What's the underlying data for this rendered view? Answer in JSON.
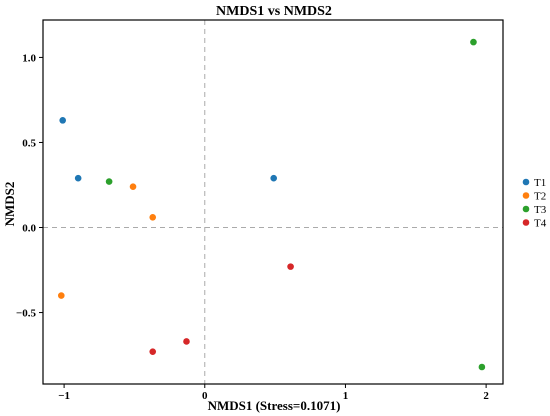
{
  "chart_data": {
    "type": "scatter",
    "title": "NMDS1 vs NMDS2",
    "xlabel": "NMDS1 (Stress=0.1071)",
    "ylabel": "NMDS2",
    "xlim": [
      -1.15,
      2.12
    ],
    "ylim": [
      -0.92,
      1.22
    ],
    "x_ticks": [
      -1,
      0,
      1,
      2
    ],
    "x_tick_labels": [
      "−1",
      "0",
      "1",
      "2"
    ],
    "y_ticks": [
      -0.5,
      0,
      0.5,
      1.0
    ],
    "y_tick_labels": [
      "−0.5",
      "0.0",
      "0.5",
      "1.0"
    ],
    "reference_lines": {
      "x": 0,
      "y": 0,
      "style": "dashed"
    },
    "grid": false,
    "legend_position": "right",
    "series": [
      {
        "name": "T1",
        "color": "#1f77b4",
        "points": [
          [
            -1.01,
            0.63
          ],
          [
            -0.9,
            0.29
          ],
          [
            0.49,
            0.29
          ]
        ]
      },
      {
        "name": "T2",
        "color": "#ff7f0e",
        "points": [
          [
            -0.51,
            0.24
          ],
          [
            -0.37,
            0.06
          ],
          [
            -1.02,
            -0.4
          ]
        ]
      },
      {
        "name": "T3",
        "color": "#2ca02c",
        "points": [
          [
            -0.68,
            0.27
          ],
          [
            1.91,
            1.09
          ],
          [
            1.97,
            -0.82
          ]
        ]
      },
      {
        "name": "T4",
        "color": "#d62728",
        "points": [
          [
            0.61,
            -0.23
          ],
          [
            -0.13,
            -0.67
          ],
          [
            -0.37,
            -0.73
          ]
        ]
      }
    ]
  }
}
